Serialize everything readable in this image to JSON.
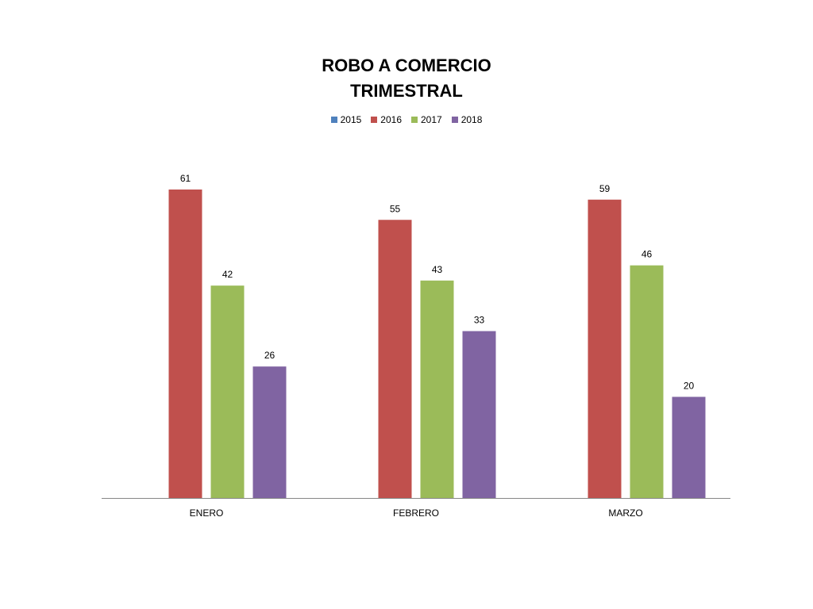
{
  "chart_data": {
    "type": "bar",
    "title_lines": [
      "ROBO A COMERCIO",
      "TRIMESTRAL"
    ],
    "categories": [
      "ENERO",
      "FEBRERO",
      "MARZO"
    ],
    "series": [
      {
        "name": "2015",
        "color": "#4f81bd",
        "values": [
          null,
          null,
          null
        ]
      },
      {
        "name": "2016",
        "color": "#c0504d",
        "values": [
          61,
          55,
          59
        ]
      },
      {
        "name": "2017",
        "color": "#9bbb59",
        "values": [
          42,
          43,
          46
        ]
      },
      {
        "name": "2018",
        "color": "#8064a2",
        "values": [
          26,
          33,
          20
        ]
      }
    ],
    "ylim": [
      0,
      61
    ],
    "grid": false,
    "legend_position": "top-center",
    "data_labels": true,
    "xlabel": "",
    "ylabel": ""
  }
}
